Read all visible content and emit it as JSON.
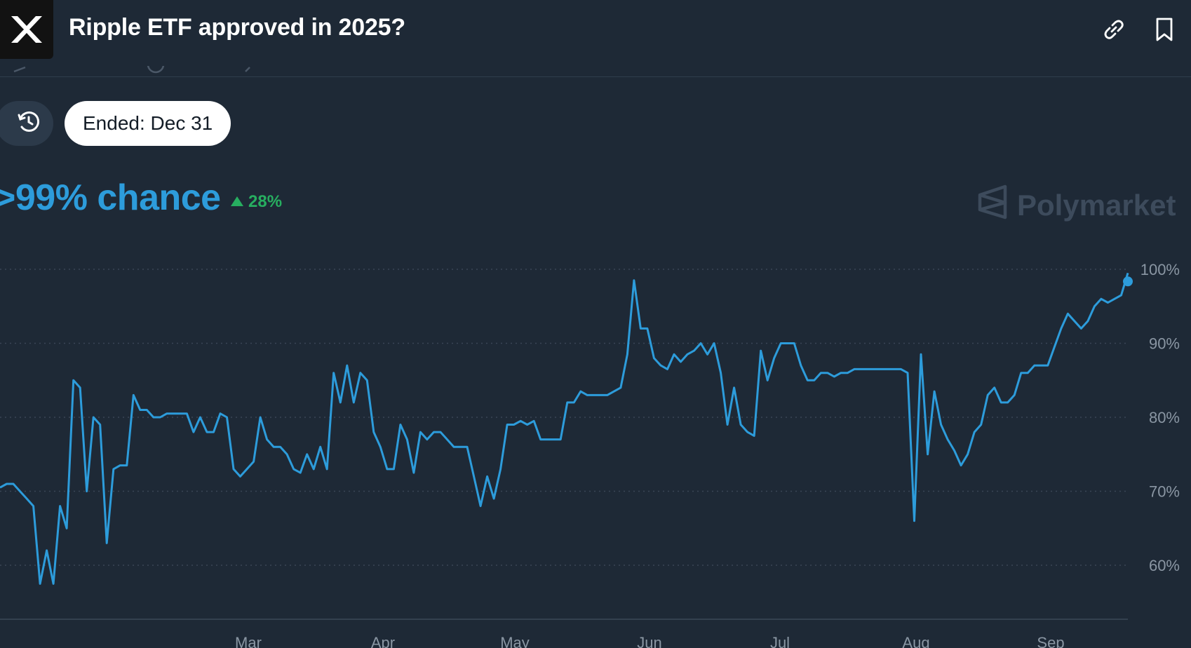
{
  "header": {
    "title": "Ripple ETF approved in 2025?",
    "logo_icon": "xrp-logo-icon",
    "link_icon": "link-icon",
    "bookmark_icon": "bookmark-icon"
  },
  "controls": {
    "history_icon": "history-icon",
    "ended_label": "Ended: Dec 31"
  },
  "summary": {
    "chance": ">99% chance",
    "delta": "28%",
    "delta_icon": "triangle-up-icon",
    "watermark": "Polymarket"
  },
  "colors": {
    "background": "#1e2936",
    "line": "#2d9cdb",
    "positive": "#27ae60",
    "grid": "#3a4656",
    "axis_text": "#8a96a3"
  },
  "chart_data": {
    "type": "line",
    "title": "",
    "xlabel": "",
    "ylabel": "",
    "ylim": [
      55,
      100
    ],
    "yticks": [
      "100%",
      "90%",
      "80%",
      "70%",
      "60%"
    ],
    "ytick_values": [
      100,
      90,
      80,
      70,
      60
    ],
    "xticks": [
      "Mar",
      "Apr",
      "May",
      "Jun",
      "Jul",
      "Aug",
      "Sep"
    ],
    "grid": true,
    "series": [
      {
        "values": [
          70.5,
          71,
          71,
          70,
          69,
          68,
          57.5,
          62,
          57.5,
          68,
          65,
          85,
          84,
          70,
          80,
          79,
          63,
          73,
          73.5,
          73.5,
          83,
          81,
          81,
          80,
          80,
          80.5,
          80.5,
          80.5,
          80.5,
          78,
          80,
          78,
          78,
          80.5,
          80,
          73,
          72,
          73,
          74,
          80,
          77,
          76,
          76,
          75,
          73,
          72.5,
          75,
          73,
          76,
          73,
          86,
          82,
          87,
          82,
          86,
          85,
          78,
          76,
          73,
          73,
          79,
          77,
          72.5,
          78,
          77,
          78,
          78,
          77,
          76,
          76,
          76,
          72,
          68,
          72,
          69,
          73,
          79,
          79,
          79.5,
          79,
          79.5,
          77,
          77,
          77,
          77,
          82,
          82,
          83.5,
          83,
          83,
          83,
          83,
          83.5,
          84,
          88.5,
          98.5,
          92,
          92,
          88,
          87,
          86.5,
          88.5,
          87.5,
          88.5,
          89,
          90,
          88.5,
          90,
          86,
          79,
          84,
          79,
          78,
          77.5,
          89,
          85,
          88,
          90,
          90,
          90,
          87,
          85,
          85,
          86,
          86,
          85.5,
          86,
          86,
          86.5,
          86.5,
          86.5,
          86.5,
          86.5,
          86.5,
          86.5,
          86.5,
          86,
          66,
          88.5,
          75,
          83.5,
          79,
          77,
          75.5,
          73.5,
          75,
          78,
          79,
          83,
          84,
          82,
          82,
          83,
          86,
          86,
          87,
          87,
          87,
          89.5,
          92,
          94,
          93,
          92,
          93,
          95,
          96,
          95.5,
          96,
          96.5,
          99.5
        ]
      }
    ]
  }
}
